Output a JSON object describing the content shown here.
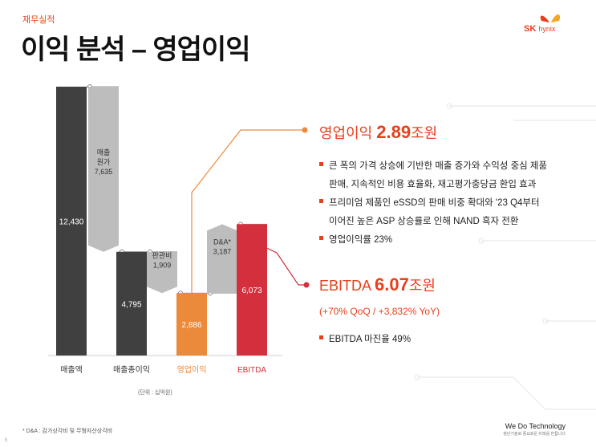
{
  "header": {
    "section": "재무실적",
    "title": "이익 분석 – 영업이익",
    "logo_text": "SK hynix"
  },
  "colors": {
    "dark_bar": "#404040",
    "gray_bar": "#bdbdbd",
    "orange": "#ea8a3a",
    "red": "#d42f3c",
    "accent": "#e8401c"
  },
  "chart_data": {
    "type": "waterfall",
    "unit_label": "(단위 : 십억원)",
    "ylim": [
      0,
      12430
    ],
    "categories": [
      "매출액",
      "매출총이익",
      "영업이익",
      "EBITDA"
    ],
    "steps": [
      {
        "name": "매출액",
        "kind": "total",
        "value": 12430,
        "label": "12,430",
        "color": "dark"
      },
      {
        "name": "매출\n원가",
        "kind": "decrease",
        "value": 7635,
        "label": "7,635",
        "caption": "매출\n원가",
        "color": "gray"
      },
      {
        "name": "매출총이익",
        "kind": "total",
        "value": 4795,
        "label": "4,795",
        "color": "dark"
      },
      {
        "name": "판관비",
        "kind": "decrease",
        "value": 1909,
        "label": "1,909",
        "caption": "판관비",
        "color": "gray"
      },
      {
        "name": "영업이익",
        "kind": "total",
        "value": 2886,
        "label": "2,886",
        "color": "orange"
      },
      {
        "name": "D&A*",
        "kind": "increase",
        "value": 3187,
        "label": "3,187",
        "caption": "D&A*",
        "color": "gray"
      },
      {
        "name": "EBITDA",
        "kind": "total",
        "value": 6073,
        "label": "6,073",
        "color": "red"
      }
    ]
  },
  "panel": {
    "op_label": "영업이익",
    "op_value": "2.89",
    "op_unit": "조원",
    "bullets1": [
      {
        "line1": "큰 폭의 가격 상승에 기반한 매출 증가와 수익성 중심 제품",
        "line2": "판매, 지속적인 비용 효율화, 재고평가충당금 환입 효과"
      },
      {
        "line1": "프리미엄 제품인 eSSD의 판매 비중 확대와 '23 Q4부터",
        "line2": "이어진 높은 ASP 상승률로 인해 NAND 흑자 전환"
      },
      {
        "line1": "영업이익률 23%",
        "line2": ""
      }
    ],
    "ebitda_label": "EBITDA",
    "ebitda_value": "6.07",
    "ebitda_unit": "조원",
    "ebitda_growth": "(+70% QoQ / +3,832% YoY)",
    "bullets2": [
      "EBITDA 마진율 49%"
    ]
  },
  "footer": {
    "footnote": "* D&A : 감가상각비 및 무형자산상각비",
    "tagline": "We Do Technology",
    "tagline_sub": "첨단기술로 풍요로운 미래를 만듭니다",
    "page": "5"
  }
}
